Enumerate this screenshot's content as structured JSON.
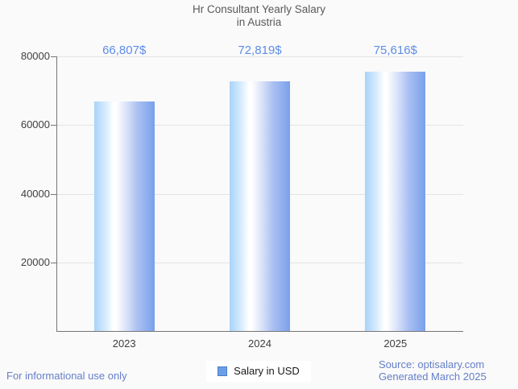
{
  "title": {
    "line1": "Hr Consultant Yearly Salary",
    "line2": "in Austria"
  },
  "chart_data": {
    "type": "bar",
    "title": "Hr Consultant Yearly Salary in Austria",
    "categories": [
      "2023",
      "2024",
      "2025"
    ],
    "series": [
      {
        "name": "Salary in USD",
        "values": [
          66807,
          72819,
          75616
        ]
      }
    ],
    "value_labels": [
      "66,807$",
      "72,819$",
      "75,616$"
    ],
    "xlabel": "",
    "ylabel": "",
    "ylim": [
      0,
      80000
    ],
    "y_ticks": [
      20000,
      40000,
      60000,
      80000
    ],
    "y_tick_labels": [
      "20000",
      "40000",
      "60000",
      "80000"
    ],
    "grid": "horizontal",
    "legend_position": "bottom"
  },
  "legend": {
    "label": "Salary in USD"
  },
  "footer": {
    "left": "For informational use only",
    "source_line1": "Source: optisalary.com",
    "source_line2": "Generated March 2025"
  },
  "colors": {
    "background": "#fafafa",
    "bar_edge_left": "#a8d3f9",
    "bar_highlight": "#ffffff",
    "bar_edge_right": "#7aa0eb",
    "value_label": "#5d8de9",
    "footer_text": "#657fc8",
    "title_text": "#5a5a5a",
    "axis_line": "#757575",
    "gridline": "#e4e4e4",
    "axis_label": "#3f3f3f",
    "legend_swatch_fill": "#6d9eea",
    "legend_swatch_border": "#4b7ec2"
  }
}
